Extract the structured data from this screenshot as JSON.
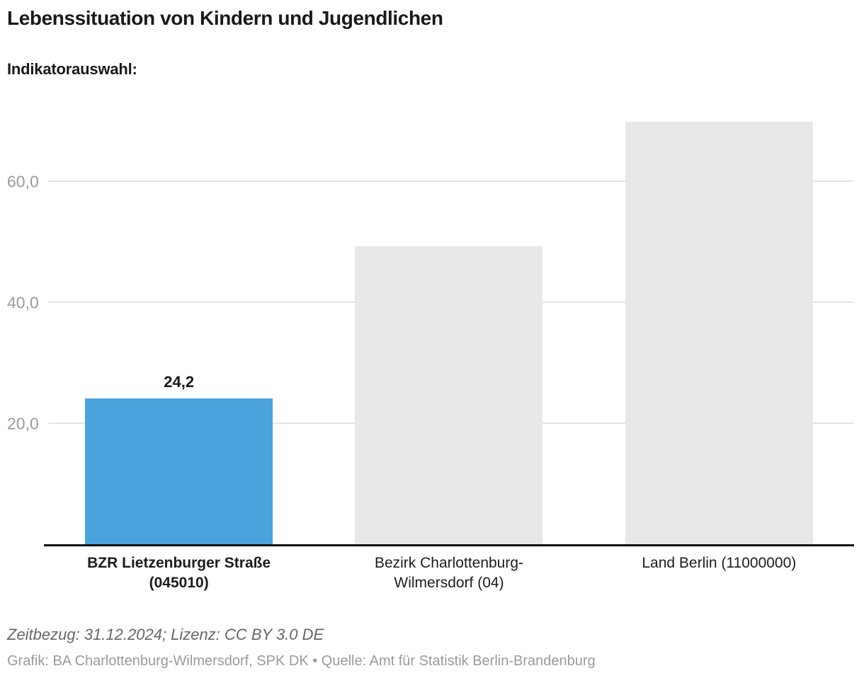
{
  "header": {
    "title": "Lebenssituation von Kindern und Jugendlichen",
    "subtitle": "Indikatorauswahl:"
  },
  "chart_data": {
    "type": "bar",
    "title": "Lebenssituation von Kindern und Jugendlichen",
    "categories": [
      "BZR Lietzenburger Straße (045010)",
      "Bezirk Charlottenburg-Wilmersdorf (04)",
      "Land Berlin (11000000)"
    ],
    "values": [
      24.2,
      49.3,
      69.9
    ],
    "value_labels": [
      "24,2",
      "",
      ""
    ],
    "bar_colors": [
      "#4aa3dc",
      "#e8e8e8",
      "#e8e8e8"
    ],
    "highlight_index": 0,
    "xlabel": "",
    "ylabel": "",
    "ylim": [
      0,
      74.8
    ],
    "yticks": [
      20,
      40,
      60
    ],
    "ytick_labels": [
      "20,0",
      "40,0",
      "60,0"
    ],
    "grid": true,
    "legend": false
  },
  "footer": {
    "meta": "Zeitbezug: 31.12.2024; Lizenz: CC BY 3.0 DE",
    "credit": "Grafik: BA Charlottenburg-Wilmersdorf, SPK DK • Quelle: Amt für Statistik Berlin-Brandenburg"
  },
  "colors": {
    "accent": "#4aa3dc",
    "bar_muted": "#e8e8e8",
    "grid": "#e5e5e5",
    "axis": "#0d0d0d",
    "tick_label": "#9b9b9b",
    "title": "#1a1a1a",
    "footer_meta": "#666666",
    "footer_credit": "#9a9a9a"
  }
}
